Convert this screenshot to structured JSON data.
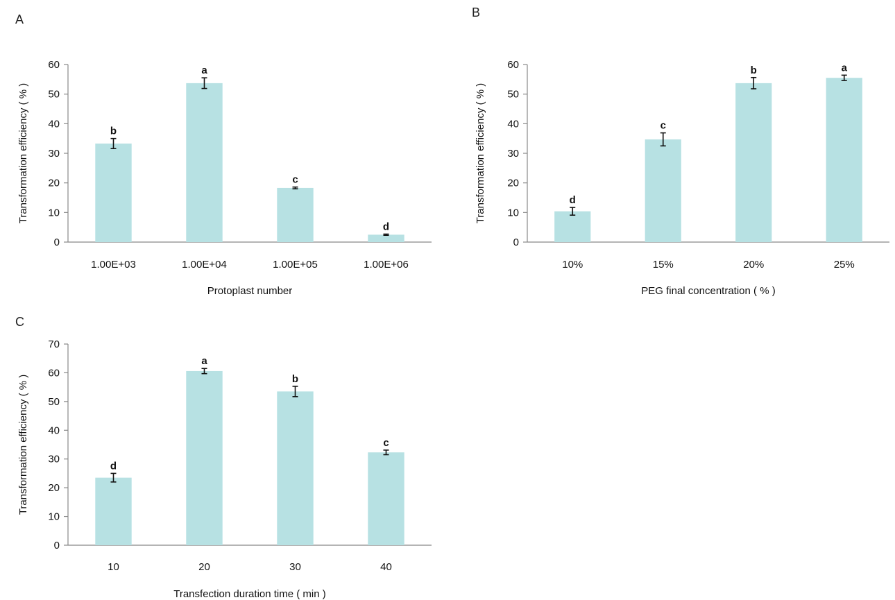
{
  "chart_data": [
    {
      "panel": "A",
      "type": "bar",
      "categories": [
        "1.00E+03",
        "1.00E+04",
        "1.00E+05",
        "1.00E+06"
      ],
      "values": [
        33.3,
        53.7,
        18.3,
        2.5
      ],
      "errors": [
        1.7,
        1.8,
        0.3,
        0.2
      ],
      "significance": [
        "b",
        "a",
        "c",
        "d"
      ],
      "xlabel": "Protoplast number",
      "ylabel": "Transformation efficiency ( % )",
      "ylim": [
        0,
        60
      ],
      "yticks": [
        "0",
        "10",
        "20",
        "30",
        "40",
        "50",
        "60"
      ],
      "bar_color": "#b7e1e3",
      "grid": false
    },
    {
      "panel": "B",
      "type": "bar",
      "categories": [
        "10%",
        "15%",
        "20%",
        "25%"
      ],
      "values": [
        10.4,
        34.7,
        53.7,
        55.5
      ],
      "errors": [
        1.3,
        2.2,
        1.9,
        0.9
      ],
      "significance": [
        "d",
        "c",
        "b",
        "a"
      ],
      "xlabel": "PEG final concentration ( % )",
      "ylabel": "Transformation efficiency ( % )",
      "ylim": [
        0,
        60
      ],
      "yticks": [
        "0",
        "10",
        "20",
        "30",
        "40",
        "50",
        "60"
      ],
      "bar_color": "#b7e1e3",
      "grid": false
    },
    {
      "panel": "C",
      "type": "bar",
      "categories": [
        "10",
        "20",
        "30",
        "40"
      ],
      "values": [
        23.5,
        60.6,
        53.5,
        32.3
      ],
      "errors": [
        1.5,
        0.9,
        1.8,
        0.8
      ],
      "significance": [
        "d",
        "a",
        "b",
        "c"
      ],
      "xlabel": "Transfection duration time ( min )",
      "ylabel": "Transformation efficiency ( % )",
      "ylim": [
        0,
        70
      ],
      "yticks": [
        "0",
        "10",
        "20",
        "30",
        "40",
        "50",
        "60",
        "70"
      ],
      "bar_color": "#b7e1e3",
      "grid": false
    }
  ]
}
